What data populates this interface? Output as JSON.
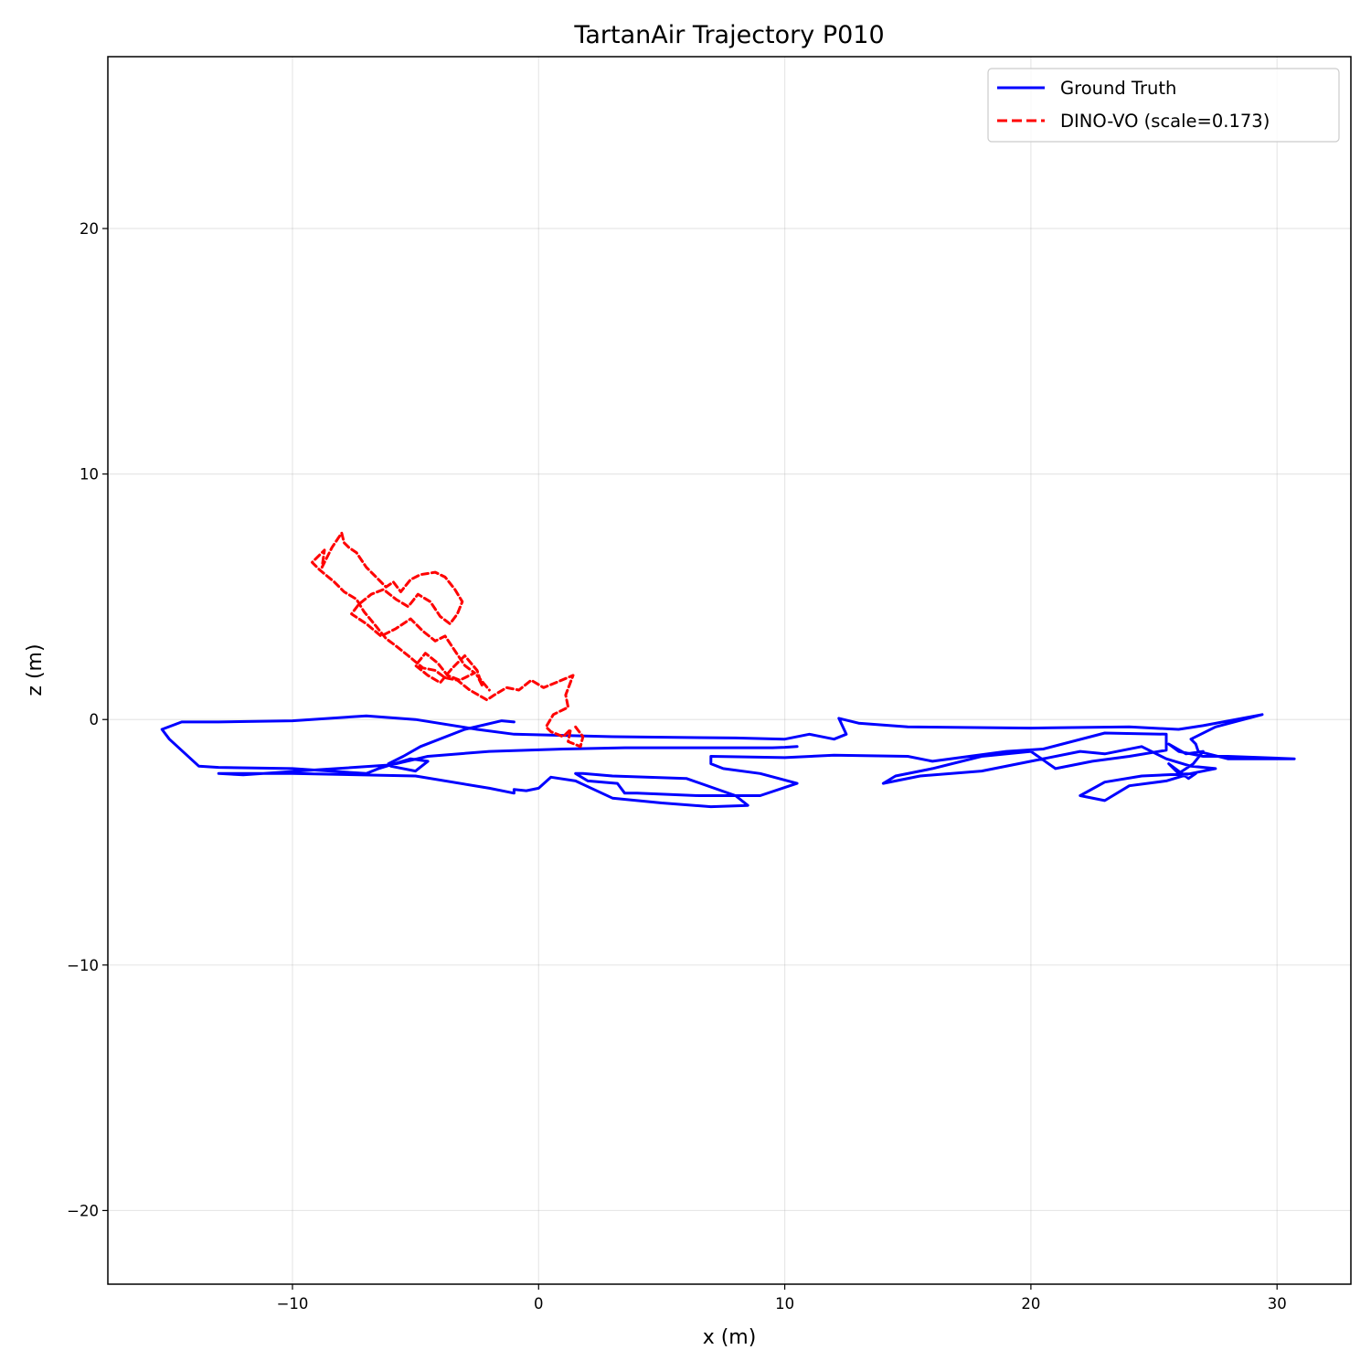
{
  "chart_data": {
    "type": "line",
    "title": "TartanAir Trajectory P010",
    "xlabel": "x (m)",
    "ylabel": "z (m)",
    "xlim": [
      -17.5,
      33
    ],
    "ylim": [
      -23,
      27
    ],
    "xticks": [
      -10,
      0,
      10,
      20,
      30
    ],
    "yticks": [
      -20,
      -10,
      0,
      10,
      20
    ],
    "xtick_labels": [
      "−10",
      "0",
      "10",
      "20",
      "30"
    ],
    "ytick_labels": [
      "−20",
      "−10",
      "0",
      "10",
      "20"
    ],
    "grid": true,
    "legend_position": "top-right",
    "series": [
      {
        "name": "Ground Truth",
        "color": "#0000ff",
        "style": "solid",
        "x": [
          -1.0,
          -1.5,
          -3.0,
          -4.8,
          -5.5,
          -6.1,
          -6.0,
          -5.0,
          -4.5,
          -5.2,
          -6.5,
          -7.0,
          -10.0,
          -13.0,
          -13.8,
          -15.0,
          -15.3,
          -14.5,
          -13.0,
          -10.0,
          -7.0,
          -5.0,
          -2.5,
          -1.0,
          3.0,
          8.0,
          10.0,
          11.0,
          12.0,
          12.5,
          12.2,
          13.0,
          15.0,
          20.0,
          24.0,
          26.0,
          27.0,
          29.4,
          27.5,
          26.5,
          26.7,
          26.8,
          28.0,
          30.7,
          28.0,
          27.0,
          26.0,
          25.6,
          26.3,
          27.0,
          26.6,
          26.0,
          25.6,
          26.4,
          26.7,
          24.5,
          23.0,
          22.0,
          23.0,
          24.0,
          25.5,
          26.5,
          27.5,
          26.5,
          25.5,
          24.5,
          23.0,
          22.0,
          20.0,
          18.0,
          15.5,
          14.0,
          14.5,
          16.0,
          18.0,
          20.0,
          21.0,
          22.5,
          24.0,
          25.5,
          25.5,
          23.0,
          20.5,
          19.0,
          17.5,
          16.0,
          15.0,
          12.0,
          10.0,
          7.0,
          7.0,
          7.5,
          9.0,
          10.5,
          9.0,
          6.5,
          4.0,
          3.5,
          3.2,
          2.0,
          1.5,
          1.8,
          3.0,
          6.0,
          8.0,
          8.5,
          7.0,
          5.0,
          3.0,
          1.5,
          0.5,
          0.0,
          -0.5,
          -1.0,
          -1.0,
          -2.0,
          -5.0,
          -10.0,
          -13.0,
          -12.0,
          -9.0,
          -6.0,
          -4.5,
          -2.0,
          1.0,
          3.5,
          5.0,
          7.5,
          9.5,
          10.0,
          10.5
        ],
        "y": [
          -0.1,
          -0.05,
          -0.4,
          -1.1,
          -1.5,
          -1.8,
          -1.9,
          -2.1,
          -1.7,
          -1.6,
          -2.0,
          -2.2,
          -2.0,
          -1.95,
          -1.9,
          -0.8,
          -0.4,
          -0.1,
          -0.1,
          -0.05,
          0.15,
          0.0,
          -0.4,
          -0.6,
          -0.7,
          -0.75,
          -0.8,
          -0.6,
          -0.8,
          -0.6,
          0.05,
          -0.15,
          -0.3,
          -0.35,
          -0.3,
          -0.4,
          -0.25,
          0.2,
          -0.3,
          -0.8,
          -1.0,
          -1.3,
          -1.6,
          -1.6,
          -1.5,
          -1.5,
          -1.3,
          -1.0,
          -1.4,
          -1.3,
          -1.8,
          -2.2,
          -1.8,
          -2.4,
          -2.2,
          -2.3,
          -2.55,
          -3.1,
          -3.3,
          -2.7,
          -2.5,
          -2.2,
          -2.0,
          -1.9,
          -1.6,
          -1.1,
          -1.4,
          -1.3,
          -1.7,
          -2.1,
          -2.3,
          -2.6,
          -2.3,
          -2.0,
          -1.5,
          -1.3,
          -2.0,
          -1.7,
          -1.5,
          -1.25,
          -0.6,
          -0.55,
          -1.2,
          -1.3,
          -1.5,
          -1.7,
          -1.5,
          -1.45,
          -1.55,
          -1.5,
          -1.8,
          -2.0,
          -2.2,
          -2.6,
          -3.1,
          -3.1,
          -3.0,
          -3.0,
          -2.6,
          -2.5,
          -2.2,
          -2.2,
          -2.3,
          -2.4,
          -3.1,
          -3.5,
          -3.55,
          -3.4,
          -3.2,
          -2.5,
          -2.35,
          -2.8,
          -2.9,
          -2.85,
          -3.0,
          -2.8,
          -2.3,
          -2.2,
          -2.2,
          -2.25,
          -2.05,
          -1.85,
          -1.5,
          -1.3,
          -1.2,
          -1.15,
          -1.15,
          -1.15,
          -1.15,
          -1.13,
          -1.1
        ]
      },
      {
        "name": "DINO-VO (scale=0.173)",
        "color": "#ff0000",
        "style": "dashed",
        "x": [
          1.5,
          1.8,
          1.7,
          1.2,
          1.3,
          1.0,
          0.5,
          0.3,
          0.6,
          1.2,
          1.1,
          1.4,
          0.7,
          0.2,
          -0.3,
          -0.8,
          -1.3,
          -1.8,
          -2.1,
          -2.8,
          -3.3,
          -3.8,
          -4.2,
          -4.7,
          -5.3,
          -5.8,
          -6.2,
          -6.6,
          -7.1,
          -7.4,
          -7.9,
          -8.3,
          -8.9,
          -9.2,
          -8.7,
          -8.8,
          -8.4,
          -8.0,
          -7.9,
          -7.7,
          -7.4,
          -7.0,
          -6.6,
          -6.2,
          -5.9,
          -5.6,
          -5.2,
          -4.8,
          -4.2,
          -3.8,
          -3.4,
          -3.1,
          -3.3,
          -3.6,
          -4.0,
          -4.4,
          -4.9,
          -5.3,
          -5.8,
          -6.3,
          -6.8,
          -7.3,
          -7.6,
          -7.0,
          -6.4,
          -5.8,
          -5.2,
          -4.7,
          -4.2,
          -3.8,
          -3.4,
          -3.0,
          -2.6,
          -3.2,
          -3.7,
          -4.1,
          -4.6,
          -5.0,
          -4.5,
          -4.0,
          -3.5,
          -3.0,
          -2.5,
          -2.3,
          -2.5,
          -2.0
        ],
        "y": [
          -0.3,
          -0.7,
          -1.1,
          -0.9,
          -0.4,
          -0.7,
          -0.5,
          -0.3,
          0.2,
          0.5,
          1.0,
          1.8,
          1.5,
          1.3,
          1.6,
          1.2,
          1.3,
          1.0,
          0.8,
          1.2,
          1.6,
          1.7,
          2.0,
          2.1,
          2.6,
          3.0,
          3.3,
          3.8,
          4.4,
          4.9,
          5.2,
          5.6,
          6.1,
          6.4,
          6.9,
          6.2,
          7.0,
          7.6,
          7.2,
          7.0,
          6.8,
          6.2,
          5.8,
          5.4,
          5.6,
          5.2,
          5.7,
          5.9,
          6.0,
          5.8,
          5.3,
          4.8,
          4.3,
          3.9,
          4.2,
          4.8,
          5.1,
          4.6,
          4.9,
          5.3,
          5.1,
          4.7,
          4.3,
          3.9,
          3.4,
          3.7,
          4.1,
          3.6,
          3.2,
          3.4,
          2.8,
          2.2,
          1.9,
          1.6,
          1.8,
          2.3,
          2.7,
          2.2,
          1.8,
          1.5,
          2.1,
          2.6,
          2.0,
          1.4,
          1.8,
          1.2
        ]
      }
    ]
  }
}
